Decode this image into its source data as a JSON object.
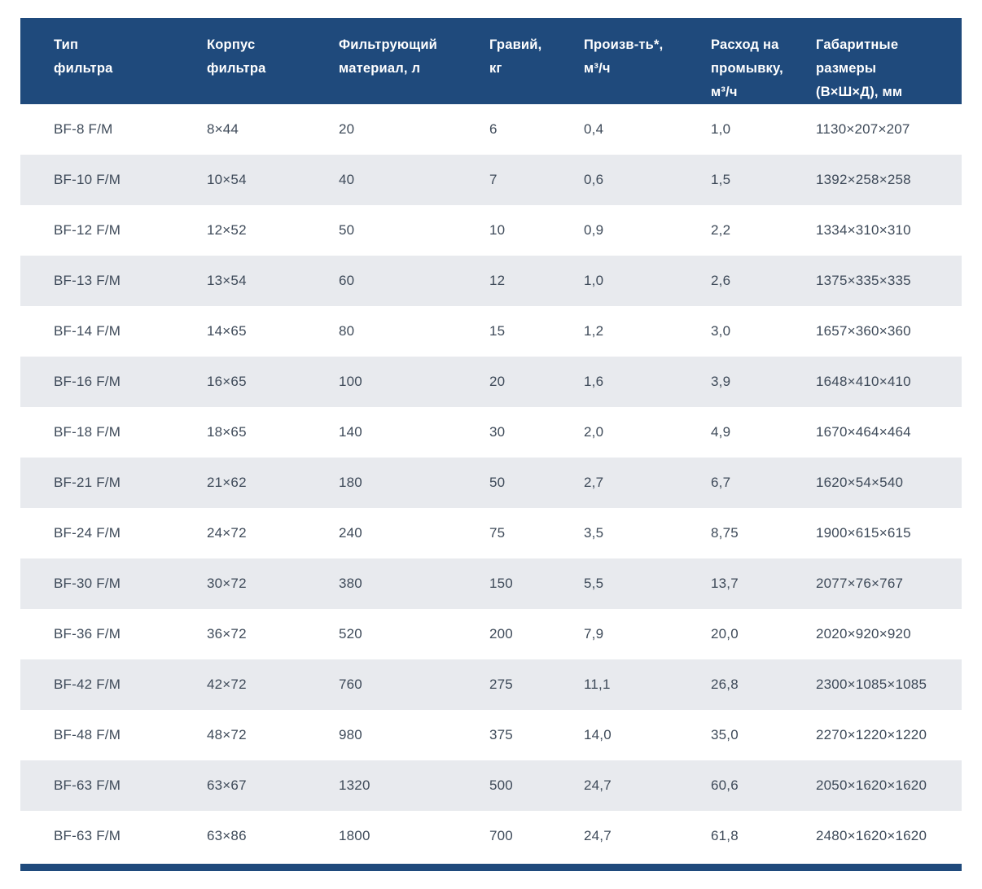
{
  "colors": {
    "header_bg": "#1f4a7c",
    "alt_row_bg": "#e8eaee",
    "body_text": "#3e4a59",
    "header_text": "#ffffff"
  },
  "table": {
    "columns": [
      "Тип\nфильтра",
      "Корпус\nфильтра",
      "Фильтрующий\nматериал, л",
      "Гравий,\nкг",
      "Произв-ть*,\nм³/ч",
      "Расход на\nпромывку,\nм³/ч",
      "Габаритные\nразмеры\n(В×Ш×Д), мм"
    ],
    "rows": [
      [
        "BF-8 F/M",
        "8×44",
        "20",
        "6",
        "0,4",
        "1,0",
        "1130×207×207"
      ],
      [
        "BF-10 F/M",
        "10×54",
        "40",
        "7",
        "0,6",
        "1,5",
        "1392×258×258"
      ],
      [
        "BF-12 F/M",
        "12×52",
        "50",
        "10",
        "0,9",
        "2,2",
        "1334×310×310"
      ],
      [
        "BF-13 F/M",
        "13×54",
        "60",
        "12",
        "1,0",
        "2,6",
        "1375×335×335"
      ],
      [
        "BF-14 F/M",
        "14×65",
        "80",
        "15",
        "1,2",
        "3,0",
        "1657×360×360"
      ],
      [
        "BF-16 F/M",
        "16×65",
        "100",
        "20",
        "1,6",
        "3,9",
        "1648×410×410"
      ],
      [
        "BF-18 F/M",
        "18×65",
        "140",
        "30",
        "2,0",
        "4,9",
        "1670×464×464"
      ],
      [
        "BF-21 F/M",
        "21×62",
        "180",
        "50",
        "2,7",
        "6,7",
        "1620×54×540"
      ],
      [
        "BF-24 F/M",
        "24×72",
        "240",
        "75",
        "3,5",
        "8,75",
        "1900×615×615"
      ],
      [
        "BF-30 F/M",
        "30×72",
        "380",
        "150",
        "5,5",
        "13,7",
        "2077×76×767"
      ],
      [
        "BF-36 F/M",
        "36×72",
        "520",
        "200",
        "7,9",
        "20,0",
        "2020×920×920"
      ],
      [
        "BF-42 F/M",
        "42×72",
        "760",
        "275",
        "11,1",
        "26,8",
        "2300×1085×1085"
      ],
      [
        "BF-48 F/M",
        "48×72",
        "980",
        "375",
        "14,0",
        "35,0",
        "2270×1220×1220"
      ],
      [
        "BF-63 F/M",
        "63×67",
        "1320",
        "500",
        "24,7",
        "60,6",
        "2050×1620×1620"
      ],
      [
        "BF-63 F/M",
        "63×86",
        "1800",
        "700",
        "24,7",
        "61,8",
        "2480×1620×1620"
      ]
    ]
  }
}
